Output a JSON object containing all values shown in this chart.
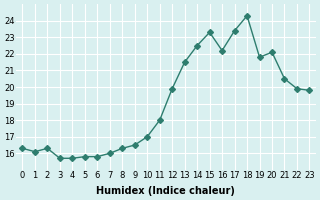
{
  "x": [
    0,
    1,
    2,
    3,
    4,
    5,
    6,
    7,
    8,
    9,
    10,
    11,
    12,
    13,
    14,
    15,
    16,
    17,
    18,
    19,
    20,
    21,
    22,
    23
  ],
  "y": [
    16.3,
    16.1,
    16.3,
    15.7,
    15.7,
    15.8,
    15.8,
    16.0,
    16.3,
    16.5,
    17.0,
    18.0,
    19.9,
    21.5,
    22.5,
    23.3,
    22.2,
    23.4,
    24.3,
    21.8,
    22.1,
    20.5,
    19.9,
    19.8
  ],
  "line_color": "#2e7d6e",
  "marker": "D",
  "marker_size": 3,
  "bg_color": "#d9f0f0",
  "grid_color": "#ffffff",
  "xlabel": "Humidex (Indice chaleur)",
  "xlim": [
    -0.5,
    23.5
  ],
  "ylim": [
    15.0,
    25.0
  ],
  "yticks": [
    16,
    17,
    18,
    19,
    20,
    21,
    22,
    23,
    24
  ],
  "xticks": [
    0,
    1,
    2,
    3,
    4,
    5,
    6,
    7,
    8,
    9,
    10,
    11,
    12,
    13,
    14,
    15,
    16,
    17,
    18,
    19,
    20,
    21,
    22,
    23
  ],
  "label_fontsize": 7,
  "tick_fontsize": 6
}
